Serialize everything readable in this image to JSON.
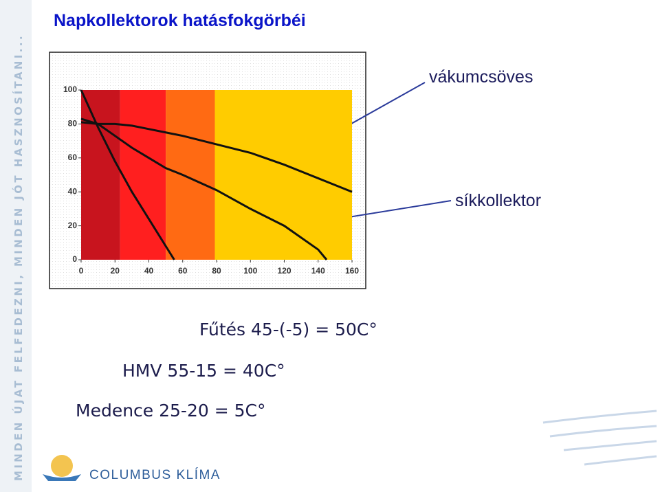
{
  "slide": {
    "side_text": "MINDEN ÚJAT FELFEDEZNI, MINDEN JÓT HASZNOSÍTANI...",
    "logo_text": "COLUMBUS KLÍMA",
    "notes": [
      "Fűtés 45-(-5) = 50C°",
      "HMV 55-15 = 40C°",
      "Medence 25-20 = 5C°"
    ]
  },
  "chart_data": {
    "type": "line",
    "title": "Napkollektorok hatásfokgörbéi",
    "x": [
      0,
      10,
      20,
      30,
      40,
      50,
      55,
      60,
      80,
      100,
      120,
      140,
      145,
      160
    ],
    "series": [
      {
        "color": "#111111",
        "values": [
          100,
          78,
          58,
          40,
          24,
          8,
          0,
          null,
          null,
          null,
          null,
          null,
          null,
          null
        ]
      },
      {
        "name": "síkkollektor",
        "color": "#111111",
        "values": [
          83,
          80,
          73,
          66,
          60,
          54,
          52,
          50,
          41,
          30,
          20,
          6,
          0,
          null
        ]
      },
      {
        "name": "vákumcsöves",
        "color": "#111111",
        "values": [
          81,
          80,
          80,
          79,
          77,
          75,
          74,
          73,
          68,
          63,
          56,
          48,
          46,
          40
        ]
      }
    ],
    "bands": [
      {
        "x": [
          0,
          23
        ],
        "color": "#c8141e"
      },
      {
        "x": [
          23,
          50
        ],
        "color": "#ff1f1f"
      },
      {
        "x": [
          50,
          79
        ],
        "color": "#ff6a13"
      },
      {
        "x": [
          79,
          160
        ],
        "color": "#ffcc00"
      }
    ],
    "xlim": [
      0,
      160
    ],
    "ylim": [
      0,
      100
    ],
    "xticks": [
      0,
      20,
      40,
      60,
      80,
      100,
      120,
      140,
      160
    ],
    "yticks": [
      0,
      20,
      40,
      60,
      80,
      100
    ]
  }
}
